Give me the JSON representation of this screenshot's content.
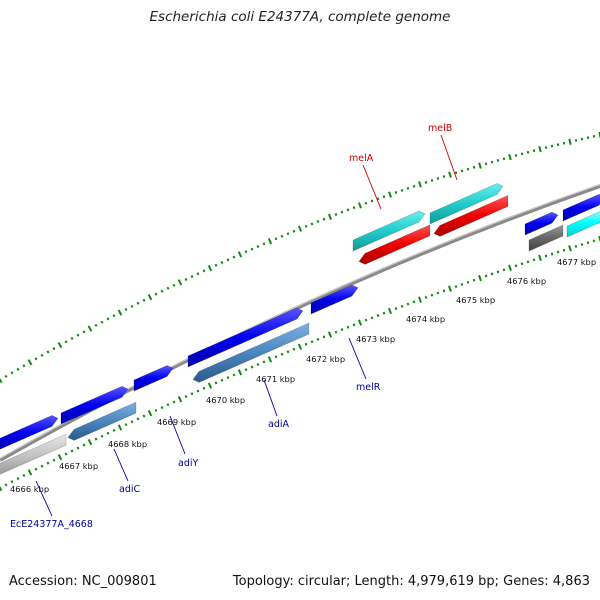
{
  "title": "Escherichia coli E24377A, complete genome",
  "footer": {
    "accession": "Accession: NC_009801",
    "topology": "Topology: circular; Length: 4,979,619 bp; Genes: 4,863"
  },
  "ticks": [
    {
      "label": "4666 kbp"
    },
    {
      "label": "4667 kbp"
    },
    {
      "label": "4668 kbp"
    },
    {
      "label": "4669 kbp"
    },
    {
      "label": "4670 kbp"
    },
    {
      "label": "4671 kbp"
    },
    {
      "label": "4672 kbp"
    },
    {
      "label": "4673 kbp"
    },
    {
      "label": "4674 kbp"
    },
    {
      "label": "4675 kbp"
    },
    {
      "label": "4676 kbp"
    },
    {
      "label": "4677 kbp"
    }
  ],
  "genes": [
    {
      "name": "EcE24377A_4668",
      "color": "#000099"
    },
    {
      "name": "adiC",
      "color": "#000099"
    },
    {
      "name": "adiY",
      "color": "#000099"
    },
    {
      "name": "adiA",
      "color": "#000099"
    },
    {
      "name": "melR",
      "color": "#000099"
    },
    {
      "name": "melA",
      "color": "#cc0000"
    },
    {
      "name": "melB",
      "color": "#cc0000"
    }
  ],
  "colors": {
    "forward_cds": "#0000ee",
    "reverse_cds": "#4a86c0",
    "forward_rna": "#22cccc",
    "reverse_red": "#ee0000",
    "pseudo_gray": "#aaaaaa",
    "backbone": "#8a8a8a",
    "tick_green": "#118811"
  }
}
